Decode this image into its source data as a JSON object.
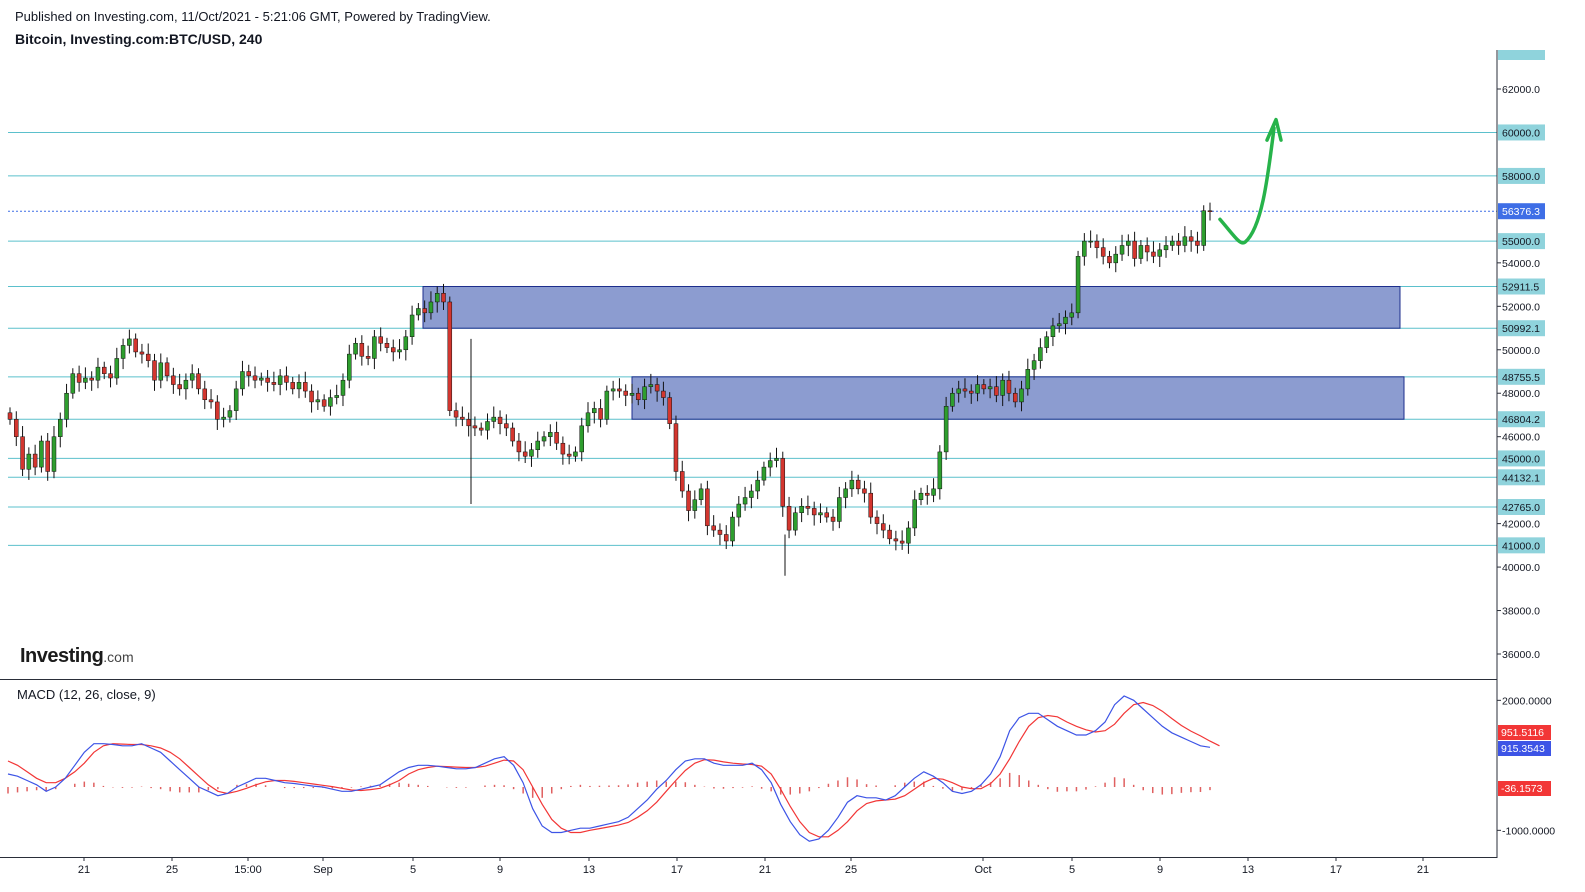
{
  "header": {
    "published": "Published on Investing.com, 11/Oct/2021 - 5:21:06 GMT, Powered by TradingView.",
    "symbol": "Bitcoin, Investing.com:BTC/USD, 240"
  },
  "logo": {
    "brand": "Investing",
    "domain": ".com"
  },
  "macd": {
    "title": "MACD (12, 26, close, 9)"
  },
  "colors": {
    "up": "#2e9e2e",
    "down": "#d3362f",
    "hline": "#5bc0cc",
    "zone": "#6f83c4",
    "last_price": "#3e6ee6",
    "signal": "#f23636",
    "macd_line": "#3d54e6",
    "hist_pos": "#e06060",
    "arrow": "#27b34a"
  },
  "chart_data": [
    {
      "type": "candlestick",
      "symbol": "Bitcoin, Investing.com:BTC/USD, 240",
      "y_axis_ticks": [
        62000,
        60000,
        58000,
        55000,
        54000,
        52000,
        50000,
        48000,
        46000,
        45000,
        42000,
        40000,
        38000,
        36000
      ],
      "y_axis_tick_labels": [
        "62000.0",
        "60000.0",
        "58000.0",
        "55000.0",
        "54000.0",
        "52000.0",
        "50000.0",
        "48000.0",
        "46000.0",
        "45000.0",
        "42000.0",
        "40000.0",
        "38000.0",
        "36000.0"
      ],
      "ylim": [
        34500,
        63500
      ],
      "x_tick_labels": [
        "21",
        "25",
        "15:00",
        "Sep",
        "5",
        "9",
        "13",
        "17",
        "21",
        "25",
        "Oct",
        "5",
        "9",
        "13",
        "17",
        "21"
      ],
      "horizontal_levels": [
        60000,
        58000,
        55000,
        52911.5,
        50992.1,
        48755.5,
        46804.2,
        45000,
        44132.1,
        42765,
        41000
      ],
      "horizontal_level_labels": [
        "60000.0",
        "58000.0",
        "55000.0",
        "52911.5",
        "50992.1",
        "48755.5",
        "46804.2",
        "45000.0",
        "44132.1",
        "42765.0",
        "41000.0"
      ],
      "last_price": 56376.3,
      "last_price_label": "56376.3",
      "zones": [
        {
          "from": 50992.1,
          "to": 52911.5,
          "start": "Sep 5",
          "end": "Oct 20"
        },
        {
          "from": 46804.2,
          "to": 48755.5,
          "start": "Sep 15",
          "end": "Oct 20"
        }
      ],
      "series_close": [
        46800,
        46000,
        44500,
        45200,
        44600,
        45800,
        44400,
        46000,
        46800,
        48000,
        48900,
        48500,
        48700,
        48600,
        49200,
        48900,
        48700,
        49600,
        50200,
        50500,
        49900,
        49800,
        49500,
        48600,
        49400,
        48800,
        48400,
        48200,
        48600,
        48900,
        48200,
        47700,
        47600,
        46800,
        46900,
        47200,
        48200,
        49000,
        48800,
        48600,
        48700,
        48500,
        48400,
        48800,
        48500,
        48200,
        48500,
        48100,
        47600,
        47700,
        47400,
        47800,
        47900,
        48600,
        49800,
        50300,
        49700,
        49600,
        50600,
        50300,
        50100,
        49900,
        50000,
        50600,
        51600,
        51900,
        51700,
        52200,
        52600,
        52200,
        47200,
        46900,
        46800,
        46500,
        46400,
        46300,
        46700,
        46900,
        46600,
        46400,
        45800,
        45300,
        45100,
        45400,
        45800,
        46000,
        46200,
        45700,
        45200,
        45100,
        45300,
        46500,
        47100,
        47300,
        46800,
        48100,
        48200,
        48100,
        47900,
        48000,
        47700,
        48300,
        48400,
        48100,
        47800,
        46600,
        44400,
        43500,
        42600,
        43100,
        43600,
        41900,
        41700,
        41500,
        41200,
        42300,
        42900,
        43200,
        43500,
        44000,
        44600,
        44900,
        45000,
        42800,
        41700,
        42500,
        42800,
        42700,
        42400,
        42500,
        42300,
        42100,
        43200,
        43600,
        44000,
        43600,
        43400,
        42300,
        42000,
        41700,
        41300,
        41200,
        41100,
        41800,
        43100,
        43400,
        43300,
        43600,
        45300,
        47400,
        48000,
        48200,
        48100,
        48000,
        48400,
        48200,
        48300,
        47900,
        48600,
        48000,
        47600,
        48200,
        49100,
        49500,
        50100,
        50600,
        51100,
        51200,
        51500,
        51700,
        54300,
        55000,
        55000,
        54700,
        54300,
        54000,
        54400,
        54800,
        55000,
        54200,
        54800,
        54500,
        54300,
        54600,
        54800,
        55000,
        54800,
        55200,
        55000,
        54800,
        56400,
        56376.3
      ],
      "extrema": {
        "high_ytd_point": 53000,
        "low_point": 39600,
        "spike_low": 42900
      },
      "annotation": {
        "type": "arrow",
        "description": "projected path",
        "target": 60500
      }
    },
    {
      "type": "line",
      "name": "MACD (12, 26, close, 9)",
      "y_axis_ticks": [
        2000,
        -1000
      ],
      "y_axis_tick_labels": [
        "2000.0000",
        "-1000.0000"
      ],
      "ylim": [
        -1500,
        2300
      ],
      "value_labels": {
        "signal": "951.5116",
        "macd": "915.3543",
        "histogram": "-36.1573"
      },
      "series_macd": [
        300,
        250,
        150,
        50,
        -100,
        0,
        200,
        500,
        800,
        1000,
        1000,
        980,
        950,
        950,
        1000,
        900,
        800,
        600,
        400,
        200,
        0,
        -100,
        -200,
        -150,
        0,
        100,
        200,
        200,
        150,
        100,
        80,
        50,
        20,
        0,
        -50,
        -100,
        -100,
        -50,
        0,
        50,
        200,
        350,
        450,
        500,
        500,
        480,
        450,
        420,
        420,
        450,
        550,
        650,
        700,
        500,
        100,
        -500,
        -900,
        -1050,
        -1050,
        -1000,
        -950,
        -950,
        -900,
        -850,
        -800,
        -700,
        -500,
        -300,
        -50,
        150,
        400,
        600,
        650,
        650,
        550,
        500,
        500,
        500,
        550,
        400,
        100,
        -400,
        -800,
        -1100,
        -1250,
        -1200,
        -1000,
        -700,
        -350,
        -200,
        -250,
        -250,
        -300,
        -200,
        0,
        200,
        350,
        250,
        100,
        -100,
        -150,
        -100,
        50,
        300,
        700,
        1300,
        1600,
        1700,
        1700,
        1550,
        1400,
        1300,
        1200,
        1200,
        1300,
        1500,
        1900,
        2100,
        2000,
        1800,
        1600,
        1400,
        1250,
        1150,
        1050,
        950,
        915.3543
      ],
      "series_signal": [
        600,
        500,
        350,
        200,
        100,
        100,
        200,
        350,
        550,
        800,
        950,
        1000,
        990,
        980,
        980,
        950,
        900,
        800,
        650,
        450,
        250,
        50,
        -100,
        -150,
        -100,
        -30,
        50,
        120,
        150,
        150,
        130,
        100,
        70,
        40,
        10,
        -30,
        -70,
        -80,
        -60,
        -30,
        50,
        150,
        300,
        400,
        450,
        480,
        470,
        460,
        450,
        450,
        480,
        550,
        620,
        600,
        400,
        0,
        -400,
        -750,
        -950,
        -1050,
        -1050,
        -1000,
        -960,
        -920,
        -880,
        -820,
        -700,
        -550,
        -350,
        -100,
        150,
        380,
        550,
        630,
        620,
        580,
        550,
        530,
        520,
        480,
        300,
        -50,
        -450,
        -800,
        -1050,
        -1150,
        -1150,
        -1000,
        -800,
        -550,
        -380,
        -320,
        -300,
        -280,
        -200,
        -50,
        100,
        200,
        180,
        100,
        0,
        -40,
        -40,
        80,
        300,
        650,
        1050,
        1400,
        1600,
        1650,
        1620,
        1500,
        1400,
        1320,
        1270,
        1300,
        1450,
        1700,
        1900,
        1950,
        1880,
        1750,
        1580,
        1420,
        1290,
        1180,
        1060,
        951.5116
      ]
    }
  ]
}
